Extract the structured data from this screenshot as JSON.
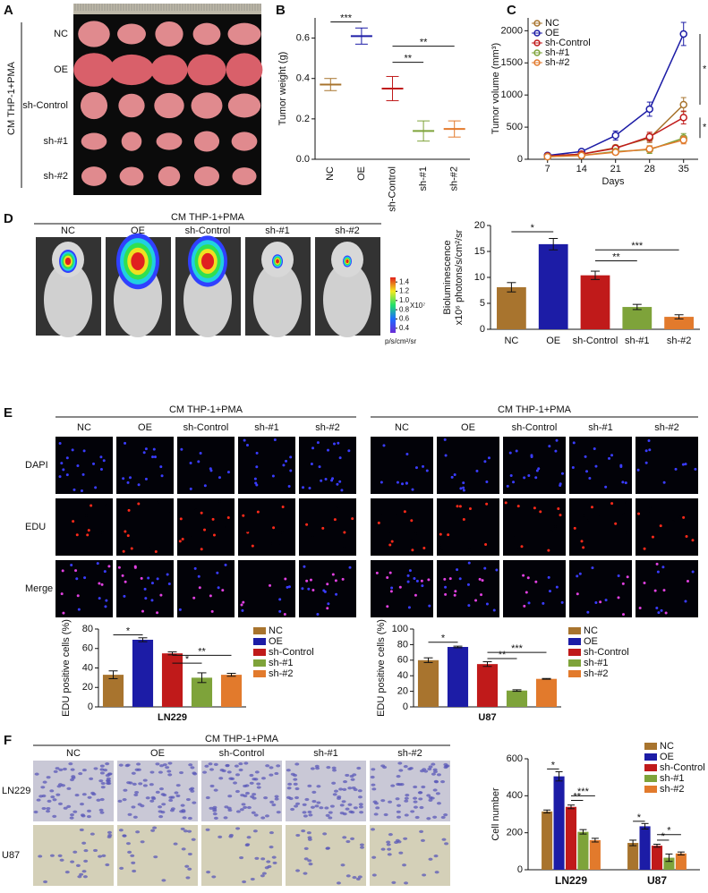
{
  "panel_labels": [
    "A",
    "B",
    "C",
    "D",
    "E",
    "F"
  ],
  "panel_a": {
    "title": "CM THP-1+PMA",
    "rows": [
      "NC",
      "OE",
      "sh-Control",
      "sh-#1",
      "sh-#2"
    ]
  },
  "panel_d": {
    "title": "CM THP-1+PMA",
    "columns": [
      "NC",
      "OE",
      "sh-Control",
      "sh-#1",
      "sh-#2"
    ],
    "colorbar": {
      "clim": [
        0.3,
        1.5
      ],
      "ticks": [
        0.4,
        0.6,
        0.8,
        {
          "value": 1,
          "label": "1.0"
        },
        1.2,
        1.4
      ],
      "multiplier": "X10⁷",
      "unit": "p/s/cm²/sr"
    }
  },
  "panel_e": {
    "titles": [
      "CM THP-1+PMA",
      "CM THP-1+PMA"
    ],
    "columns": [
      "NC",
      "OE",
      "sh-Control",
      "sh-#1",
      "sh-#2"
    ],
    "rows": [
      "DAPI",
      "EDU",
      "Merge"
    ]
  },
  "panel_f": {
    "title": "CM THP-1+PMA",
    "columns": [
      "NC",
      "OE",
      "sh-Control",
      "sh-#1",
      "sh-#2"
    ],
    "rows": [
      "LN229",
      "U87"
    ]
  },
  "chart_data": [
    {
      "type": "dot",
      "ylabel": "Tumor weight (g)",
      "categories": [
        "NC",
        "OE",
        "sh-Control",
        "sh-#1",
        "sh-#2"
      ],
      "values": [
        0.37,
        0.61,
        0.35,
        0.14,
        0.15
      ],
      "errors": [
        0.03,
        0.04,
        0.06,
        0.05,
        0.04
      ],
      "colors": [
        "#a8742e",
        "#1c1ca6",
        "#c01a1a",
        "#7ea33a",
        "#e27a2c"
      ],
      "ylim": [
        0,
        0.7
      ],
      "yticks": [
        {
          "value": 0,
          "label": "0.0"
        },
        0.2,
        0.4,
        0.6
      ],
      "annotations": [
        "***",
        "**",
        "**"
      ]
    },
    {
      "type": "line",
      "ylabel": "Tumor volume (mm³)",
      "xlabel": "Days",
      "x": [
        7,
        14,
        21,
        28,
        35
      ],
      "xlim": [
        3,
        38
      ],
      "xticks": [
        7,
        14,
        21,
        28,
        35
      ],
      "ylim": [
        0,
        2200
      ],
      "yticks": [
        0,
        500,
        1000,
        1500,
        2000
      ],
      "legend": "upper left",
      "series": [
        {
          "name": "NC",
          "color": "#a8742e",
          "values": [
            50,
            80,
            180,
            330,
            850
          ],
          "errors": [
            10,
            20,
            40,
            70,
            110
          ]
        },
        {
          "name": "OE",
          "color": "#1c1ca6",
          "values": [
            60,
            120,
            370,
            780,
            1950
          ],
          "errors": [
            10,
            30,
            70,
            110,
            180
          ]
        },
        {
          "name": "sh-Control",
          "color": "#c01a1a",
          "values": [
            50,
            80,
            170,
            350,
            650
          ],
          "errors": [
            10,
            20,
            40,
            70,
            100
          ]
        },
        {
          "name": "sh-#1",
          "color": "#7ea33a",
          "values": [
            40,
            60,
            120,
            150,
            330
          ],
          "errors": [
            10,
            15,
            30,
            60,
            70
          ]
        },
        {
          "name": "sh-#2",
          "color": "#e27a2c",
          "values": [
            40,
            60,
            110,
            160,
            300
          ],
          "errors": [
            10,
            15,
            30,
            50,
            60
          ]
        }
      ],
      "annotations": [
        "*",
        "*"
      ]
    },
    {
      "type": "bar",
      "ylabel": [
        "Bioluminescence",
        "x10⁶ photons/s/cm²/sr"
      ],
      "categories": [
        "NC",
        "OE",
        "sh-Control",
        "sh-#1",
        "sh-#2"
      ],
      "values": [
        8.1,
        16.4,
        10.4,
        4.3,
        2.4
      ],
      "errors": [
        0.9,
        1.1,
        0.8,
        0.5,
        0.4
      ],
      "colors": [
        "#a8742e",
        "#1c1ca6",
        "#c01a1a",
        "#7ea33a",
        "#e27a2c"
      ],
      "ylim": [
        0,
        20
      ],
      "yticks": [
        0,
        5,
        10,
        15,
        20
      ],
      "annotations": [
        "*",
        "**",
        "***"
      ]
    },
    {
      "type": "bar",
      "ylabel": "EDU positive cells (%)",
      "xlabel": "LN229",
      "categories": [
        "NC",
        "OE",
        "sh-Control",
        "sh-#1",
        "sh-#2"
      ],
      "values": [
        33,
        69,
        55,
        30,
        33
      ],
      "errors": [
        4,
        2,
        1.5,
        5,
        1.5
      ],
      "colors": [
        "#a8742e",
        "#1c1ca6",
        "#c01a1a",
        "#7ea33a",
        "#e27a2c"
      ],
      "legend": "right",
      "ylim": [
        0,
        80
      ],
      "yticks": [
        0,
        20,
        40,
        60,
        80
      ],
      "annotations": [
        "*",
        "*",
        "**"
      ]
    },
    {
      "type": "bar",
      "ylabel": "EDU positive cells (%)",
      "xlabel": "U87",
      "categories": [
        "NC",
        "OE",
        "sh-Control",
        "sh-#1",
        "sh-#2"
      ],
      "values": [
        60,
        77,
        55,
        21,
        36
      ],
      "errors": [
        3,
        1,
        3,
        1,
        0.5
      ],
      "colors": [
        "#a8742e",
        "#1c1ca6",
        "#c01a1a",
        "#7ea33a",
        "#e27a2c"
      ],
      "legend": "right",
      "ylim": [
        0,
        100
      ],
      "yticks": [
        0,
        20,
        40,
        60,
        80,
        100
      ],
      "annotations": [
        "*",
        "**",
        "***"
      ]
    },
    {
      "type": "grouped_bar",
      "ylabel": "Cell number",
      "categories": [
        "LN229",
        "U87"
      ],
      "legend": "upper right",
      "series": [
        {
          "name": "NC",
          "color": "#a8742e",
          "values": [
            315,
            145
          ],
          "errors": [
            8,
            15
          ]
        },
        {
          "name": "OE",
          "color": "#1c1ca6",
          "values": [
            505,
            235
          ],
          "errors": [
            25,
            15
          ]
        },
        {
          "name": "sh-Control",
          "color": "#c01a1a",
          "values": [
            340,
            130
          ],
          "errors": [
            10,
            8
          ]
        },
        {
          "name": "sh-#1",
          "color": "#7ea33a",
          "values": [
            205,
            65
          ],
          "errors": [
            12,
            20
          ]
        },
        {
          "name": "sh-#2",
          "color": "#e27a2c",
          "values": [
            160,
            88
          ],
          "errors": [
            10,
            8
          ]
        }
      ],
      "ylim": [
        0,
        600
      ],
      "yticks": [
        0,
        200,
        400,
        600
      ],
      "annotations": [
        "*",
        "**",
        "***",
        "*",
        "*",
        "*"
      ]
    }
  ]
}
